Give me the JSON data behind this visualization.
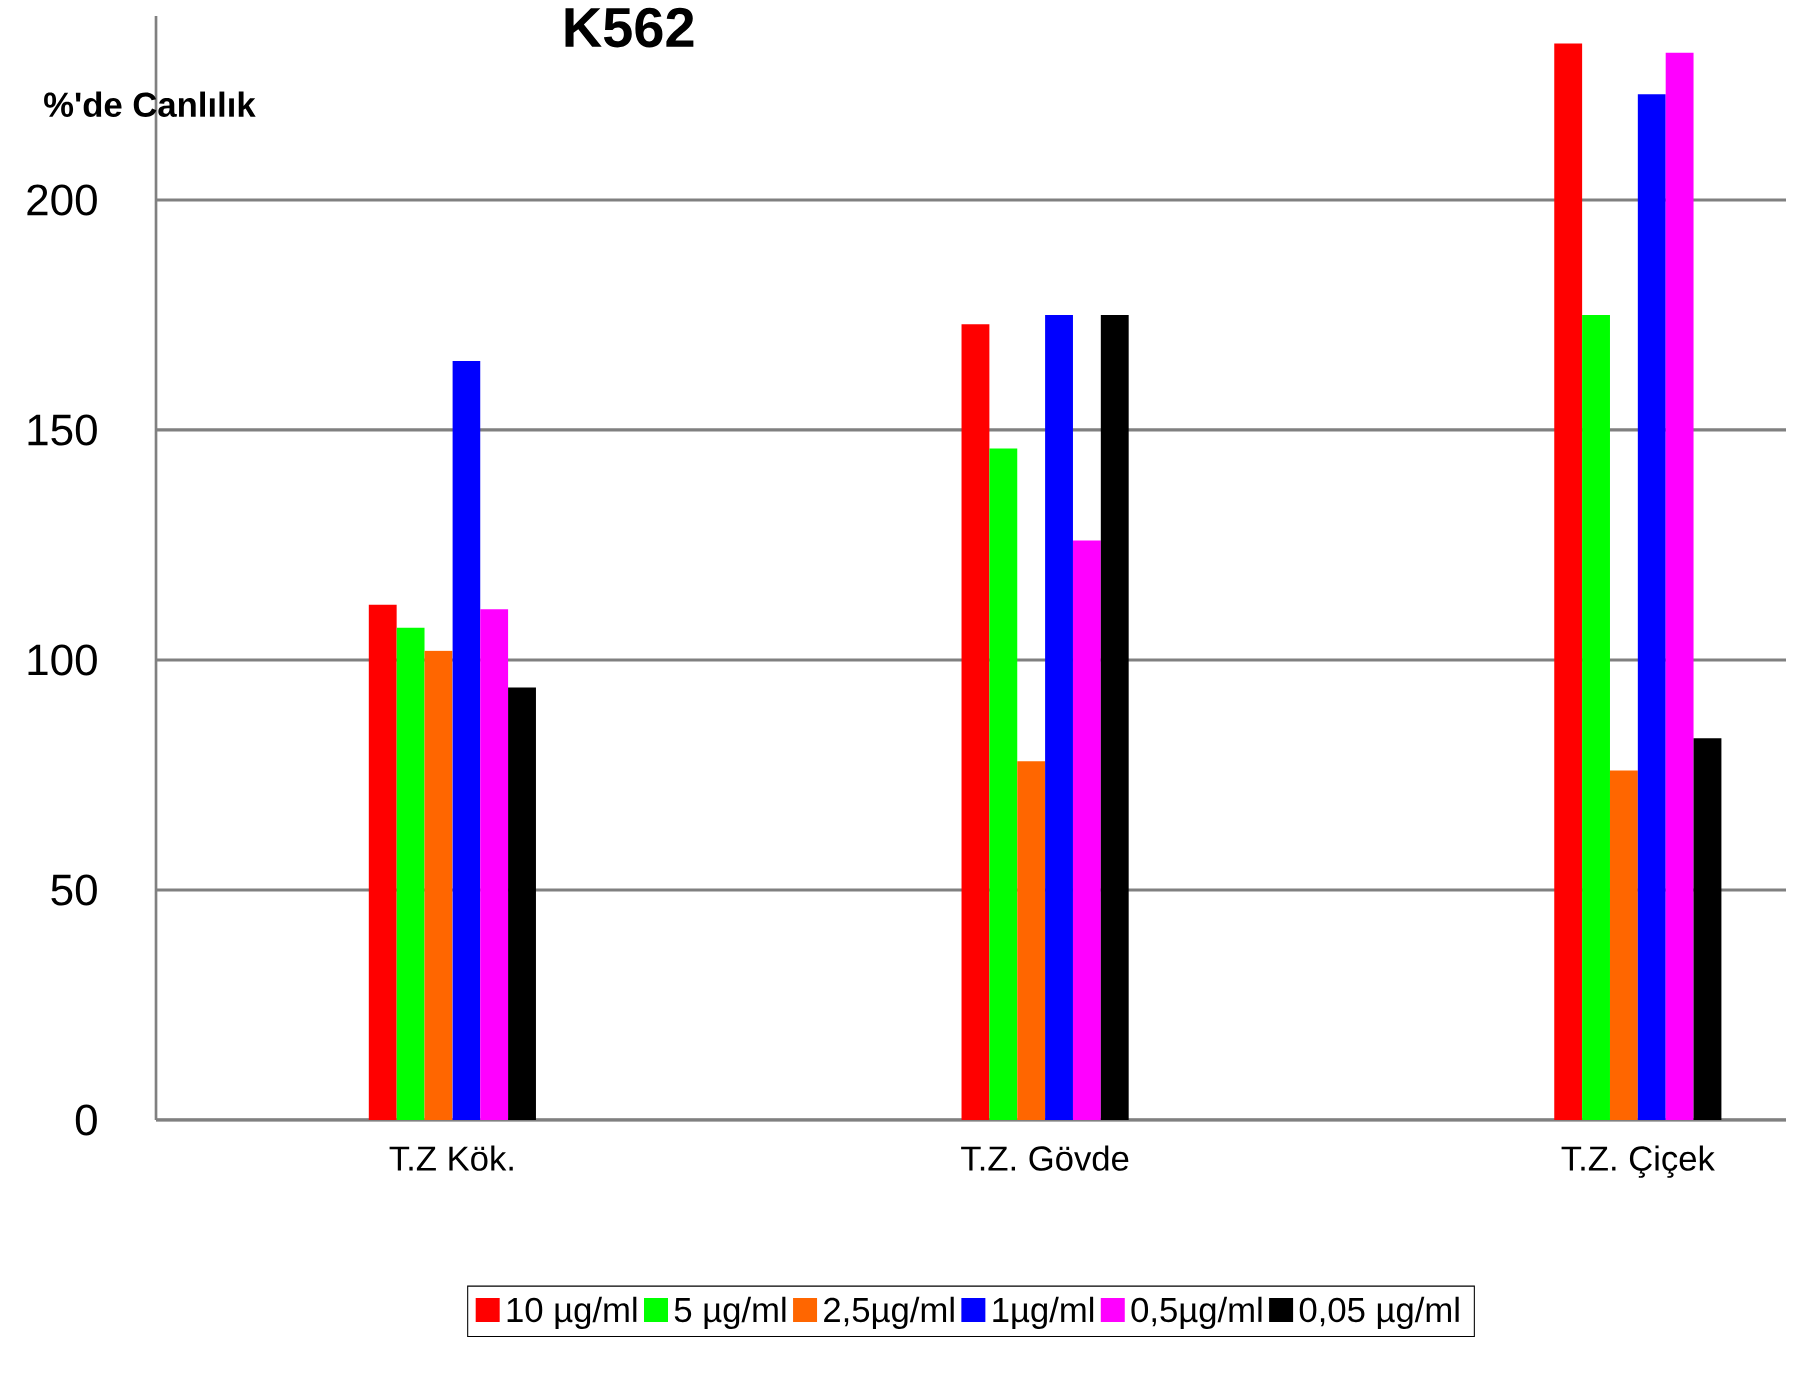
{
  "chart_data": {
    "type": "bar",
    "title": "K562",
    "ylabel": "%'de Canlılık",
    "categories": [
      "T.Z Kök.",
      "T.Z. Gövde",
      "T.Z. Çiçek"
    ],
    "series": [
      {
        "name": "10 µg/ml",
        "color": "#ff0000",
        "values": [
          112,
          173,
          234
        ]
      },
      {
        "name": "5 µg/ml",
        "color": "#00ff00",
        "values": [
          107,
          146,
          175
        ]
      },
      {
        "name": "2,5µg/ml",
        "color": "#ff6600",
        "values": [
          102,
          78,
          76
        ]
      },
      {
        "name": "1µg/ml",
        "color": "#0000ff",
        "values": [
          165,
          175,
          223
        ]
      },
      {
        "name": "0,5µg/ml",
        "color": "#ff00ff",
        "values": [
          111,
          126,
          232
        ]
      },
      {
        "name": "0,05 µg/ml",
        "color": "#000000",
        "values": [
          94,
          175,
          83
        ]
      }
    ],
    "ylim": [
      0,
      240
    ],
    "yticks": [
      0,
      50,
      100,
      150,
      200
    ],
    "grid": "y",
    "legend": "bottom"
  }
}
